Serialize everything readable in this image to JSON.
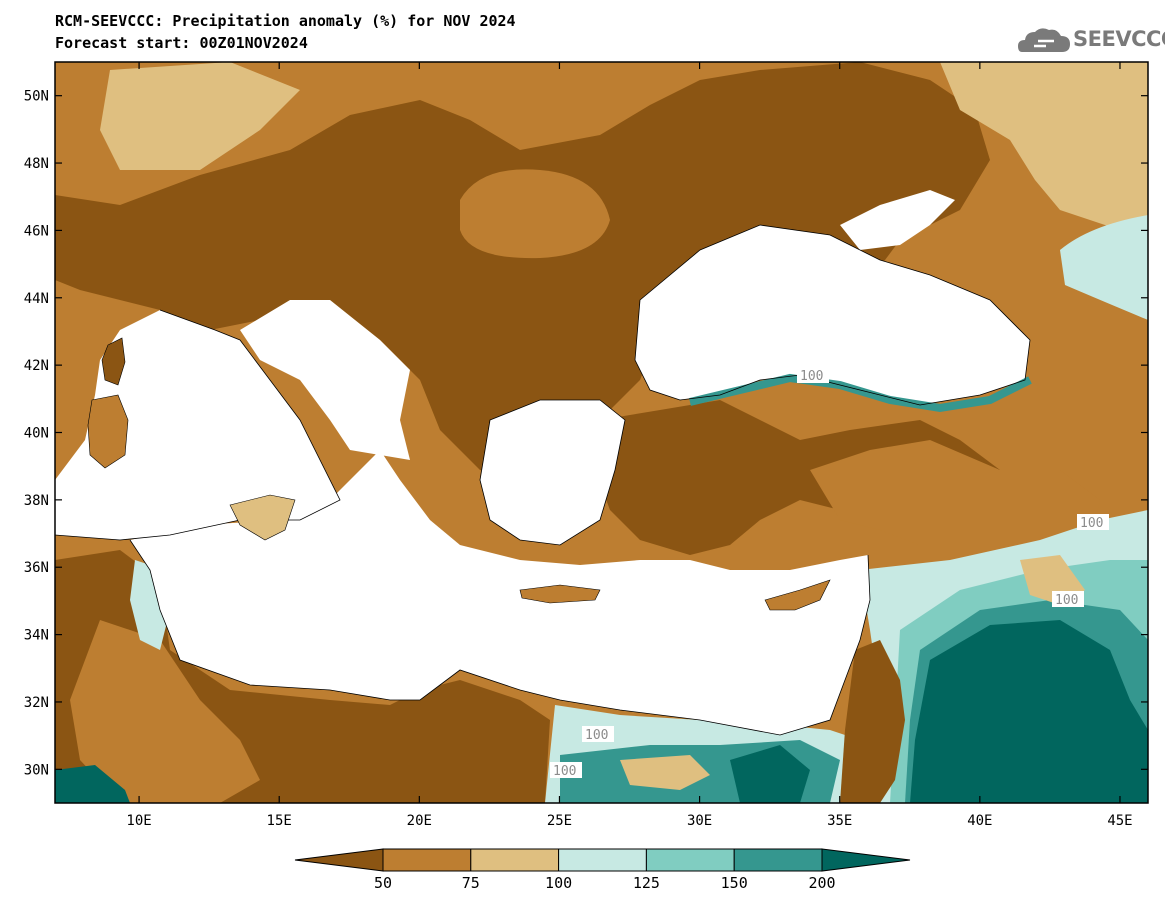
{
  "header": {
    "title": "RCM-SEEVCCC: Precipitation anomaly (%) for NOV 2024",
    "subtitle": "Forecast start: 00Z01NOV2024"
  },
  "logo": {
    "text": "SEEVCCC",
    "icon": "cloud-logo-icon"
  },
  "map": {
    "lon_range": [
      7,
      46
    ],
    "lat_range": [
      29,
      51
    ],
    "lat_ticks": [
      "50N",
      "48N",
      "46N",
      "44N",
      "42N",
      "40N",
      "38N",
      "36N",
      "34N",
      "32N",
      "30N"
    ],
    "lon_ticks": [
      "10E",
      "15E",
      "20E",
      "25E",
      "30E",
      "35E",
      "40E",
      "45E"
    ],
    "contour_labels": [
      "100",
      "100",
      "100",
      "100",
      "100"
    ]
  },
  "colorbar": {
    "levels": [
      "50",
      "75",
      "100",
      "125",
      "150",
      "200"
    ],
    "colors": [
      "#8b5513",
      "#bd7e31",
      "#dfbf80",
      "#c7e9e3",
      "#80cdc1",
      "#35978f",
      "#01665e"
    ]
  },
  "colors": {
    "sea": "#ffffff",
    "very_dry": "#8b5513",
    "dry": "#bd7e31",
    "slightly_dry": "#dfbf80",
    "slightly_wet": "#c7e9e3",
    "wet": "#80cdc1",
    "very_wet": "#35978f",
    "extremely_wet": "#01665e"
  }
}
